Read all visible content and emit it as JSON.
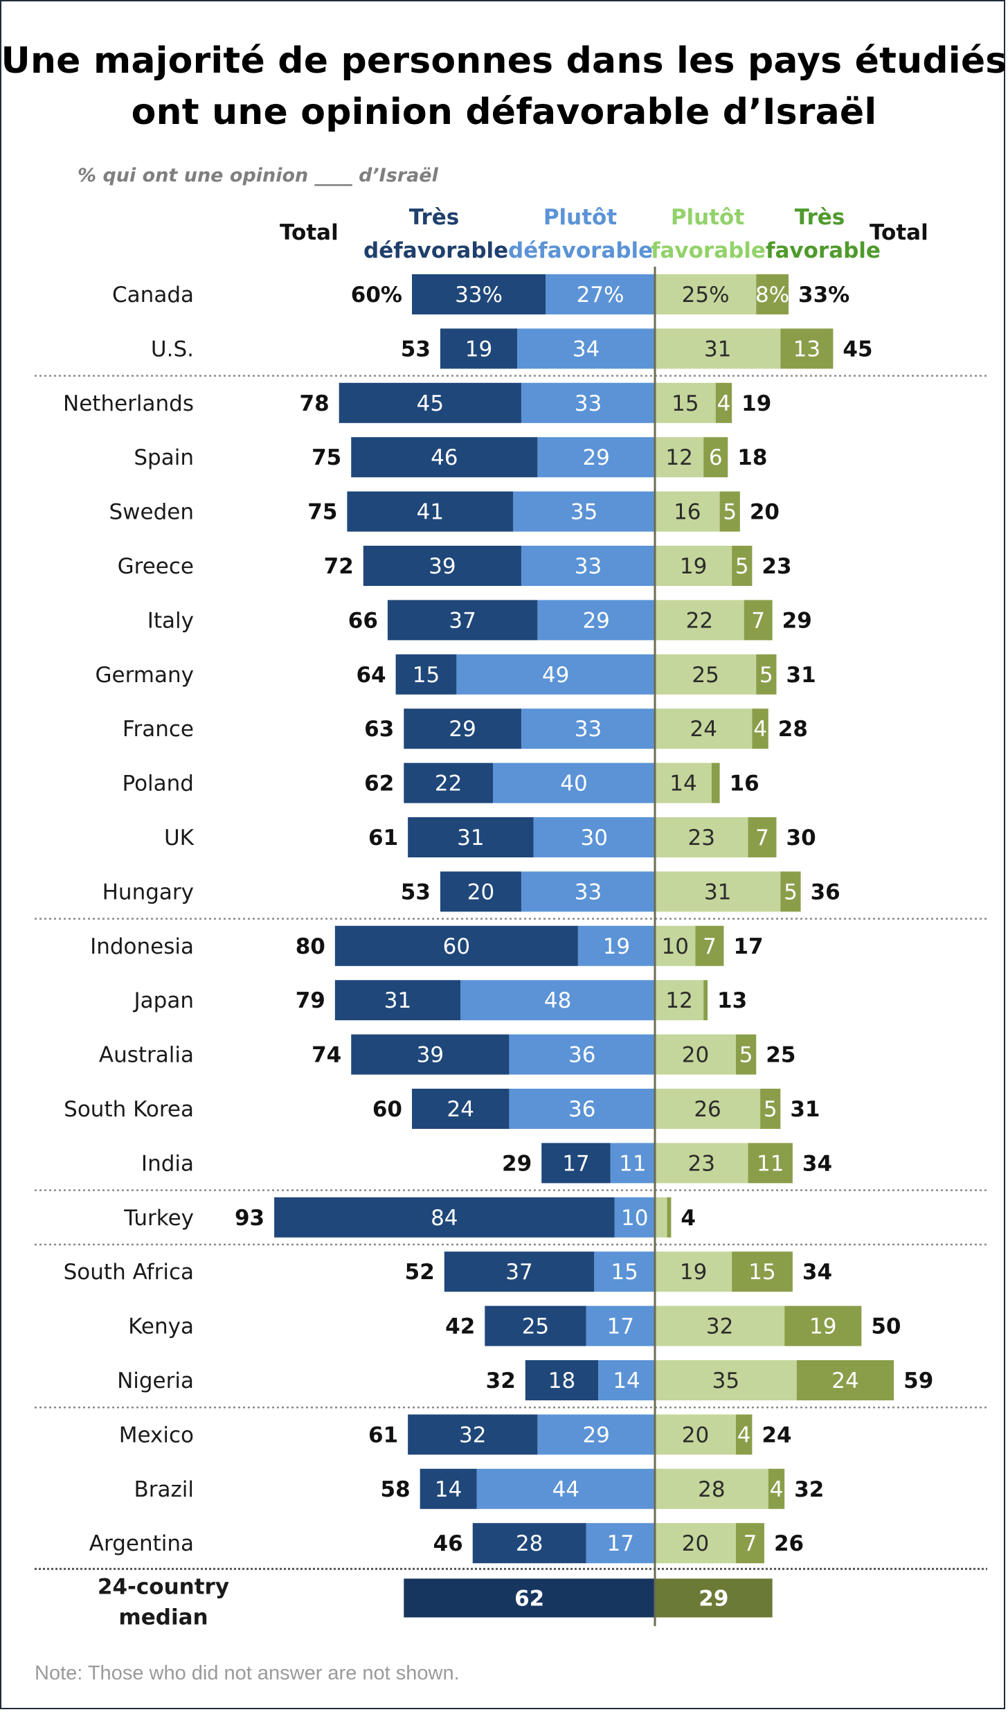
{
  "title_line1": "Une majorité de personnes dans les pays étudiés",
  "title_line2": "ont une opinion défavorable d’Israël",
  "subtitle": "% qui ont une opinion ____ d’Israël",
  "note": "Note: Those who did not answer are not shown.",
  "colors": {
    "very_unfav": "#1f477a",
    "somewhat_unfav": "#5b93d6",
    "somewhat_fav": "#c4d69b",
    "very_fav": "#8a9e4a",
    "median_unfav": "#16365f",
    "median_fav": "#6b7a35",
    "hdr_very_unfav": "#1f3f6c",
    "hdr_somewhat_unfav": "#5b93d6",
    "hdr_somewhat_fav": "#92d26a",
    "hdr_very_fav": "#4f9a2c"
  },
  "chart_data": {
    "type": "bar",
    "orientation": "horizontal-diverging",
    "headers": {
      "total_left": "Total",
      "very_unfav": [
        "Très",
        "défavorable"
      ],
      "somewhat_unfav": [
        "Plutôt",
        "défavorable"
      ],
      "somewhat_fav": [
        "Plutôt",
        "favorable"
      ],
      "very_fav": [
        "Très",
        "favorable"
      ],
      "total_right": "Total"
    },
    "rows": [
      {
        "country": "Canada",
        "very_unfav": 33,
        "somewhat_unfav": 27,
        "somewhat_fav": 25,
        "very_fav": 8,
        "unfav_total": 60,
        "fav_total": 33,
        "very_unfav_label": "33%",
        "somewhat_unfav_label": "27%",
        "somewhat_fav_label": "25%",
        "very_fav_label": "8%",
        "unfav_total_label": "60%",
        "fav_total_label": "33%"
      },
      {
        "country": "U.S.",
        "very_unfav": 19,
        "somewhat_unfav": 34,
        "somewhat_fav": 31,
        "very_fav": 13,
        "unfav_total": 53,
        "fav_total": 45,
        "very_unfav_label": "19",
        "somewhat_unfav_label": "34",
        "somewhat_fav_label": "31",
        "very_fav_label": "13",
        "unfav_total_label": "53",
        "fav_total_label": "45",
        "separator_after": true
      },
      {
        "country": "Netherlands",
        "very_unfav": 45,
        "somewhat_unfav": 33,
        "somewhat_fav": 15,
        "very_fav": 4,
        "unfav_total": 78,
        "fav_total": 19,
        "very_unfav_label": "45",
        "somewhat_unfav_label": "33",
        "somewhat_fav_label": "15",
        "very_fav_label": "4",
        "unfav_total_label": "78",
        "fav_total_label": "19"
      },
      {
        "country": "Spain",
        "very_unfav": 46,
        "somewhat_unfav": 29,
        "somewhat_fav": 12,
        "very_fav": 6,
        "unfav_total": 75,
        "fav_total": 18,
        "very_unfav_label": "46",
        "somewhat_unfav_label": "29",
        "somewhat_fav_label": "12",
        "very_fav_label": "6",
        "unfav_total_label": "75",
        "fav_total_label": "18"
      },
      {
        "country": "Sweden",
        "very_unfav": 41,
        "somewhat_unfav": 35,
        "somewhat_fav": 16,
        "very_fav": 5,
        "unfav_total": 75,
        "fav_total": 20,
        "very_unfav_label": "41",
        "somewhat_unfav_label": "35",
        "somewhat_fav_label": "16",
        "very_fav_label": "5",
        "unfav_total_label": "75",
        "fav_total_label": "20"
      },
      {
        "country": "Greece",
        "very_unfav": 39,
        "somewhat_unfav": 33,
        "somewhat_fav": 19,
        "very_fav": 5,
        "unfav_total": 72,
        "fav_total": 23,
        "very_unfav_label": "39",
        "somewhat_unfav_label": "33",
        "somewhat_fav_label": "19",
        "very_fav_label": "5",
        "unfav_total_label": "72",
        "fav_total_label": "23"
      },
      {
        "country": "Italy",
        "very_unfav": 37,
        "somewhat_unfav": 29,
        "somewhat_fav": 22,
        "very_fav": 7,
        "unfav_total": 66,
        "fav_total": 29,
        "very_unfav_label": "37",
        "somewhat_unfav_label": "29",
        "somewhat_fav_label": "22",
        "very_fav_label": "7",
        "unfav_total_label": "66",
        "fav_total_label": "29"
      },
      {
        "country": "Germany",
        "very_unfav": 15,
        "somewhat_unfav": 49,
        "somewhat_fav": 25,
        "very_fav": 5,
        "unfav_total": 64,
        "fav_total": 31,
        "very_unfav_label": "15",
        "somewhat_unfav_label": "49",
        "somewhat_fav_label": "25",
        "very_fav_label": "5",
        "unfav_total_label": "64",
        "fav_total_label": "31"
      },
      {
        "country": "France",
        "very_unfav": 29,
        "somewhat_unfav": 33,
        "somewhat_fav": 24,
        "very_fav": 4,
        "unfav_total": 63,
        "fav_total": 28,
        "very_unfav_label": "29",
        "somewhat_unfav_label": "33",
        "somewhat_fav_label": "24",
        "very_fav_label": "4",
        "unfav_total_label": "63",
        "fav_total_label": "28"
      },
      {
        "country": "Poland",
        "very_unfav": 22,
        "somewhat_unfav": 40,
        "somewhat_fav": 14,
        "very_fav": 2,
        "unfav_total": 62,
        "fav_total": 16,
        "very_unfav_label": "22",
        "somewhat_unfav_label": "40",
        "somewhat_fav_label": "14",
        "very_fav_label": "",
        "unfav_total_label": "62",
        "fav_total_label": "16"
      },
      {
        "country": "UK",
        "very_unfav": 31,
        "somewhat_unfav": 30,
        "somewhat_fav": 23,
        "very_fav": 7,
        "unfav_total": 61,
        "fav_total": 30,
        "very_unfav_label": "31",
        "somewhat_unfav_label": "30",
        "somewhat_fav_label": "23",
        "very_fav_label": "7",
        "unfav_total_label": "61",
        "fav_total_label": "30"
      },
      {
        "country": "Hungary",
        "very_unfav": 20,
        "somewhat_unfav": 33,
        "somewhat_fav": 31,
        "very_fav": 5,
        "unfav_total": 53,
        "fav_total": 36,
        "very_unfav_label": "20",
        "somewhat_unfav_label": "33",
        "somewhat_fav_label": "31",
        "very_fav_label": "5",
        "unfav_total_label": "53",
        "fav_total_label": "36",
        "separator_after": true
      },
      {
        "country": "Indonesia",
        "very_unfav": 60,
        "somewhat_unfav": 19,
        "somewhat_fav": 10,
        "very_fav": 7,
        "unfav_total": 80,
        "fav_total": 17,
        "very_unfav_label": "60",
        "somewhat_unfav_label": "19",
        "somewhat_fav_label": "10",
        "very_fav_label": "7",
        "unfav_total_label": "80",
        "fav_total_label": "17"
      },
      {
        "country": "Japan",
        "very_unfav": 31,
        "somewhat_unfav": 48,
        "somewhat_fav": 12,
        "very_fav": 1,
        "unfav_total": 79,
        "fav_total": 13,
        "very_unfav_label": "31",
        "somewhat_unfav_label": "48",
        "somewhat_fav_label": "12",
        "very_fav_label": "",
        "unfav_total_label": "79",
        "fav_total_label": "13"
      },
      {
        "country": "Australia",
        "very_unfav": 39,
        "somewhat_unfav": 36,
        "somewhat_fav": 20,
        "very_fav": 5,
        "unfav_total": 74,
        "fav_total": 25,
        "very_unfav_label": "39",
        "somewhat_unfav_label": "36",
        "somewhat_fav_label": "20",
        "very_fav_label": "5",
        "unfav_total_label": "74",
        "fav_total_label": "25"
      },
      {
        "country": "South Korea",
        "very_unfav": 24,
        "somewhat_unfav": 36,
        "somewhat_fav": 26,
        "very_fav": 5,
        "unfav_total": 60,
        "fav_total": 31,
        "very_unfav_label": "24",
        "somewhat_unfav_label": "36",
        "somewhat_fav_label": "26",
        "very_fav_label": "5",
        "unfav_total_label": "60",
        "fav_total_label": "31"
      },
      {
        "country": "India",
        "very_unfav": 17,
        "somewhat_unfav": 11,
        "somewhat_fav": 23,
        "very_fav": 11,
        "unfav_total": 29,
        "fav_total": 34,
        "very_unfav_label": "17",
        "somewhat_unfav_label": "11",
        "somewhat_fav_label": "23",
        "very_fav_label": "11",
        "unfav_total_label": "29",
        "fav_total_label": "34",
        "separator_after": true
      },
      {
        "country": "Turkey",
        "very_unfav": 84,
        "somewhat_unfav": 10,
        "somewhat_fav": 3,
        "very_fav": 1,
        "unfav_total": 93,
        "fav_total": 4,
        "very_unfav_label": "84",
        "somewhat_unfav_label": "10",
        "somewhat_fav_label": "",
        "very_fav_label": "",
        "unfav_total_label": "93",
        "fav_total_label": "4",
        "separator_after": true
      },
      {
        "country": "South Africa",
        "very_unfav": 37,
        "somewhat_unfav": 15,
        "somewhat_fav": 19,
        "very_fav": 15,
        "unfav_total": 52,
        "fav_total": 34,
        "very_unfav_label": "37",
        "somewhat_unfav_label": "15",
        "somewhat_fav_label": "19",
        "very_fav_label": "15",
        "unfav_total_label": "52",
        "fav_total_label": "34"
      },
      {
        "country": "Kenya",
        "very_unfav": 25,
        "somewhat_unfav": 17,
        "somewhat_fav": 32,
        "very_fav": 19,
        "unfav_total": 42,
        "fav_total": 50,
        "very_unfav_label": "25",
        "somewhat_unfav_label": "17",
        "somewhat_fav_label": "32",
        "very_fav_label": "19",
        "unfav_total_label": "42",
        "fav_total_label": "50"
      },
      {
        "country": "Nigeria",
        "very_unfav": 18,
        "somewhat_unfav": 14,
        "somewhat_fav": 35,
        "very_fav": 24,
        "unfav_total": 32,
        "fav_total": 59,
        "very_unfav_label": "18",
        "somewhat_unfav_label": "14",
        "somewhat_fav_label": "35",
        "very_fav_label": "24",
        "unfav_total_label": "32",
        "fav_total_label": "59",
        "separator_after": true
      },
      {
        "country": "Mexico",
        "very_unfav": 32,
        "somewhat_unfav": 29,
        "somewhat_fav": 20,
        "very_fav": 4,
        "unfav_total": 61,
        "fav_total": 24,
        "very_unfav_label": "32",
        "somewhat_unfav_label": "29",
        "somewhat_fav_label": "20",
        "very_fav_label": "4",
        "unfav_total_label": "61",
        "fav_total_label": "24"
      },
      {
        "country": "Brazil",
        "very_unfav": 14,
        "somewhat_unfav": 44,
        "somewhat_fav": 28,
        "very_fav": 4,
        "unfav_total": 58,
        "fav_total": 32,
        "very_unfav_label": "14",
        "somewhat_unfav_label": "44",
        "somewhat_fav_label": "28",
        "very_fav_label": "4",
        "unfav_total_label": "58",
        "fav_total_label": "32"
      },
      {
        "country": "Argentina",
        "very_unfav": 28,
        "somewhat_unfav": 17,
        "somewhat_fav": 20,
        "very_fav": 7,
        "unfav_total": 46,
        "fav_total": 26,
        "very_unfav_label": "28",
        "somewhat_unfav_label": "17",
        "somewhat_fav_label": "20",
        "very_fav_label": "7",
        "unfav_total_label": "46",
        "fav_total_label": "26"
      }
    ],
    "median": {
      "label_line1": "24-country",
      "label_line2": "median",
      "unfav": 62,
      "fav": 29,
      "unfav_label": "62",
      "fav_label": "29"
    }
  }
}
